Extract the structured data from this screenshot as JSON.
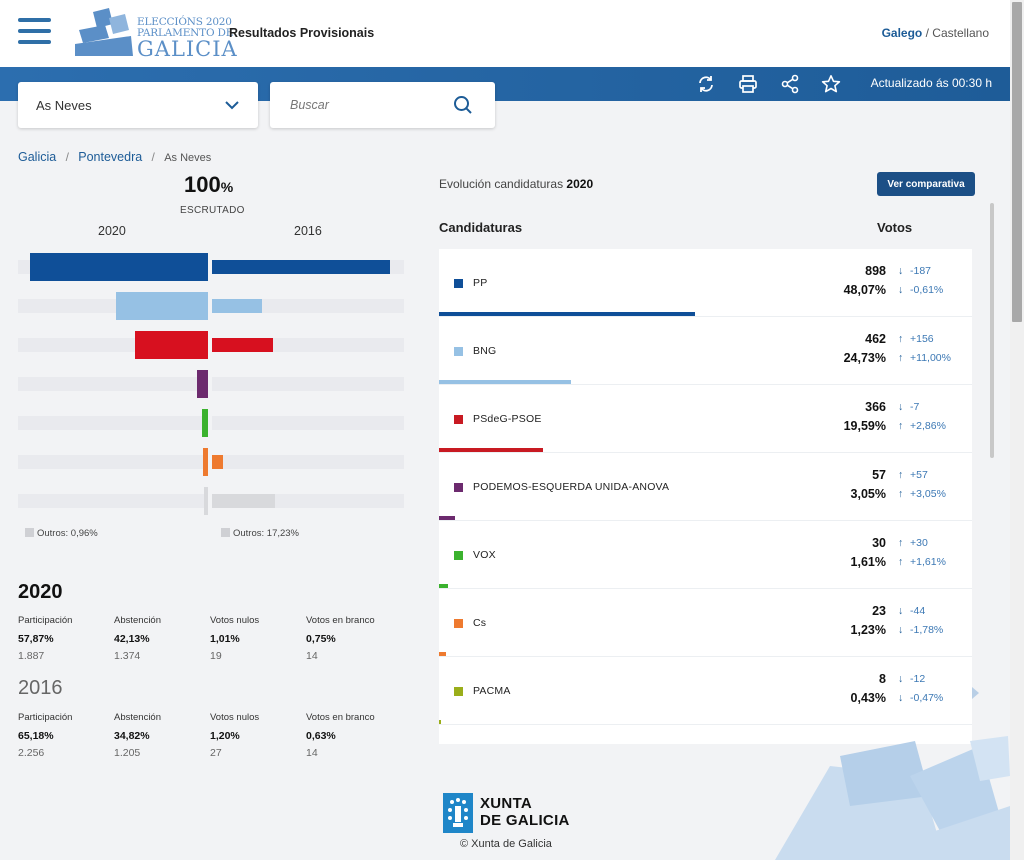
{
  "header": {
    "logo_line1": "ELECCIÓNS 2020",
    "logo_line2": "PARLAMENTO DE",
    "logo_line3": "GALICIA",
    "title": "Resultados Provisionais",
    "lang_active": "Galego",
    "lang_sep": "/",
    "lang_other": "Castellano"
  },
  "toolbar": {
    "updated": "Actualizado ás 00:30 h",
    "icons": [
      "refresh-icon",
      "print-icon",
      "share-icon",
      "star-icon"
    ]
  },
  "location_select": {
    "value": "As Neves"
  },
  "search": {
    "placeholder": "Buscar"
  },
  "breadcrumb": {
    "items": [
      "Galicia",
      "Pontevedra",
      "As Neves"
    ],
    "sep": "/"
  },
  "scrutiny": {
    "value": "100",
    "unit": "%",
    "label": "ESCRUTADO"
  },
  "compare_chart": {
    "year_left": "2020",
    "year_right": "2016",
    "rows": [
      {
        "party": "PP",
        "color": "#0f4f98",
        "left_pct": 48.07,
        "right_pct": 48.68
      },
      {
        "party": "BNG",
        "color": "#96c1e4",
        "left_pct": 24.73,
        "right_pct": 13.73
      },
      {
        "party": "PSdeG-PSOE",
        "color": "#d7101f",
        "left_pct": 19.59,
        "right_pct": 16.73
      },
      {
        "party": "PODEMOS-ESQUERDA UNIDA-ANOVA",
        "color": "#6c2a6e",
        "left_pct": 3.05,
        "right_pct": 0
      },
      {
        "party": "VOX",
        "color": "#3bb22e",
        "left_pct": 1.61,
        "right_pct": 0
      },
      {
        "party": "Cs",
        "color": "#ee7a2f",
        "left_pct": 1.23,
        "right_pct": 3.01
      },
      {
        "party": "Outros",
        "color": "#d8d9dc",
        "left_pct": 0.96,
        "right_pct": 17.23
      }
    ],
    "others_left": "Outros: 0,96%",
    "others_right": "Outros: 17,23%"
  },
  "stats": {
    "labels": [
      "Participación",
      "Abstención",
      "Votos nulos",
      "Votos en branco"
    ],
    "y2020": {
      "year": "2020",
      "values": [
        {
          "pct": "57,87%",
          "n": "1.887"
        },
        {
          "pct": "42,13%",
          "n": "1.374"
        },
        {
          "pct": "1,01%",
          "n": "19"
        },
        {
          "pct": "0,75%",
          "n": "14"
        }
      ]
    },
    "y2016": {
      "year": "2016",
      "values": [
        {
          "pct": "65,18%",
          "n": "2.256"
        },
        {
          "pct": "34,82%",
          "n": "1.205"
        },
        {
          "pct": "1,20%",
          "n": "27"
        },
        {
          "pct": "0,63%",
          "n": "14"
        }
      ]
    }
  },
  "results": {
    "evolution_label": "Evolución candidaturas",
    "evolution_year": "2020",
    "compare_button": "Ver comparativa",
    "col_candidates": "Candidaturas",
    "col_votes": "Votos",
    "parties": [
      {
        "name": "PP",
        "color": "#0f4f98",
        "votes": "898",
        "pct": "48,07%",
        "pct_value": 48.07,
        "dv": "-187",
        "dp": "-0,61%",
        "dv_dir": "down",
        "dp_dir": "down"
      },
      {
        "name": "BNG",
        "color": "#96c1e4",
        "votes": "462",
        "pct": "24,73%",
        "pct_value": 24.73,
        "dv": "+156",
        "dp": "+11,00%",
        "dv_dir": "up",
        "dp_dir": "up"
      },
      {
        "name": "PSdeG-PSOE",
        "color": "#c81a22",
        "votes": "366",
        "pct": "19,59%",
        "pct_value": 19.59,
        "dv": "-7",
        "dp": "+2,86%",
        "dv_dir": "down",
        "dp_dir": "up"
      },
      {
        "name": "PODEMOS-ESQUERDA UNIDA-ANOVA",
        "color": "#6c2a6e",
        "votes": "57",
        "pct": "3,05%",
        "pct_value": 3.05,
        "dv": "+57",
        "dp": "+3,05%",
        "dv_dir": "up",
        "dp_dir": "up"
      },
      {
        "name": "VOX",
        "color": "#3bb22e",
        "votes": "30",
        "pct": "1,61%",
        "pct_value": 1.61,
        "dv": "+30",
        "dp": "+1,61%",
        "dv_dir": "up",
        "dp_dir": "up"
      },
      {
        "name": "Cs",
        "color": "#ee7a2f",
        "votes": "23",
        "pct": "1,23%",
        "pct_value": 1.23,
        "dv": "-44",
        "dp": "-1,78%",
        "dv_dir": "down",
        "dp_dir": "down"
      },
      {
        "name": "PACMA",
        "color": "#9aae1a",
        "votes": "8",
        "pct": "0,43%",
        "pct_value": 0.43,
        "dv": "-12",
        "dp": "-0,47%",
        "dv_dir": "down",
        "dp_dir": "down"
      }
    ]
  },
  "footer": {
    "xunta_line1": "XUNTA",
    "xunta_line2": "DE GALICIA",
    "copyright": "Xunta de Galicia"
  }
}
